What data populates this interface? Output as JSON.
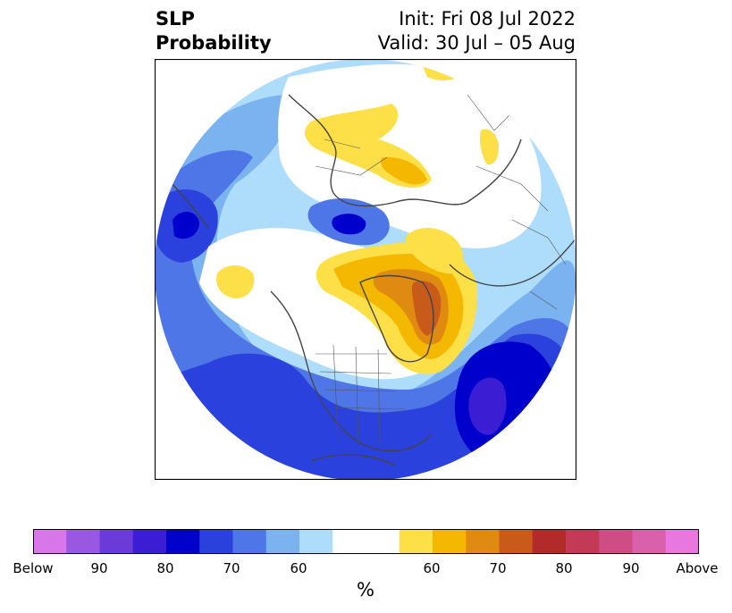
{
  "title": {
    "left_line1": "SLP",
    "left_line2": "Probability",
    "right_line1": "Init: Fri 08 Jul 2022",
    "right_line2": "Valid: 30 Jul – 05 Aug"
  },
  "map": {
    "projection": "polar stereographic (North Pole)",
    "features": [
      "coastlines",
      "country borders",
      "US state borders"
    ]
  },
  "colorbar": {
    "unit_label": "%",
    "tick_labels": [
      "Below",
      "90",
      "80",
      "70",
      "60",
      "60",
      "70",
      "80",
      "90",
      "Above"
    ],
    "bins": [
      {
        "color": "#d977ea"
      },
      {
        "color": "#9a58e2"
      },
      {
        "color": "#6a3bd9"
      },
      {
        "color": "#3b1dd3"
      },
      {
        "color": "#0000cd"
      },
      {
        "color": "#2a41dd"
      },
      {
        "color": "#4f76e6"
      },
      {
        "color": "#7bb2f0"
      },
      {
        "color": "#aedcfb"
      },
      {
        "color": "#ffffff"
      },
      {
        "color": "#ffffff"
      },
      {
        "color": "#fde047"
      },
      {
        "color": "#f4b800"
      },
      {
        "color": "#df8a10"
      },
      {
        "color": "#c85a1a"
      },
      {
        "color": "#b22a2a"
      },
      {
        "color": "#c23a55"
      },
      {
        "color": "#cd4d84"
      },
      {
        "color": "#d961ac"
      },
      {
        "color": "#e878e0"
      }
    ]
  }
}
